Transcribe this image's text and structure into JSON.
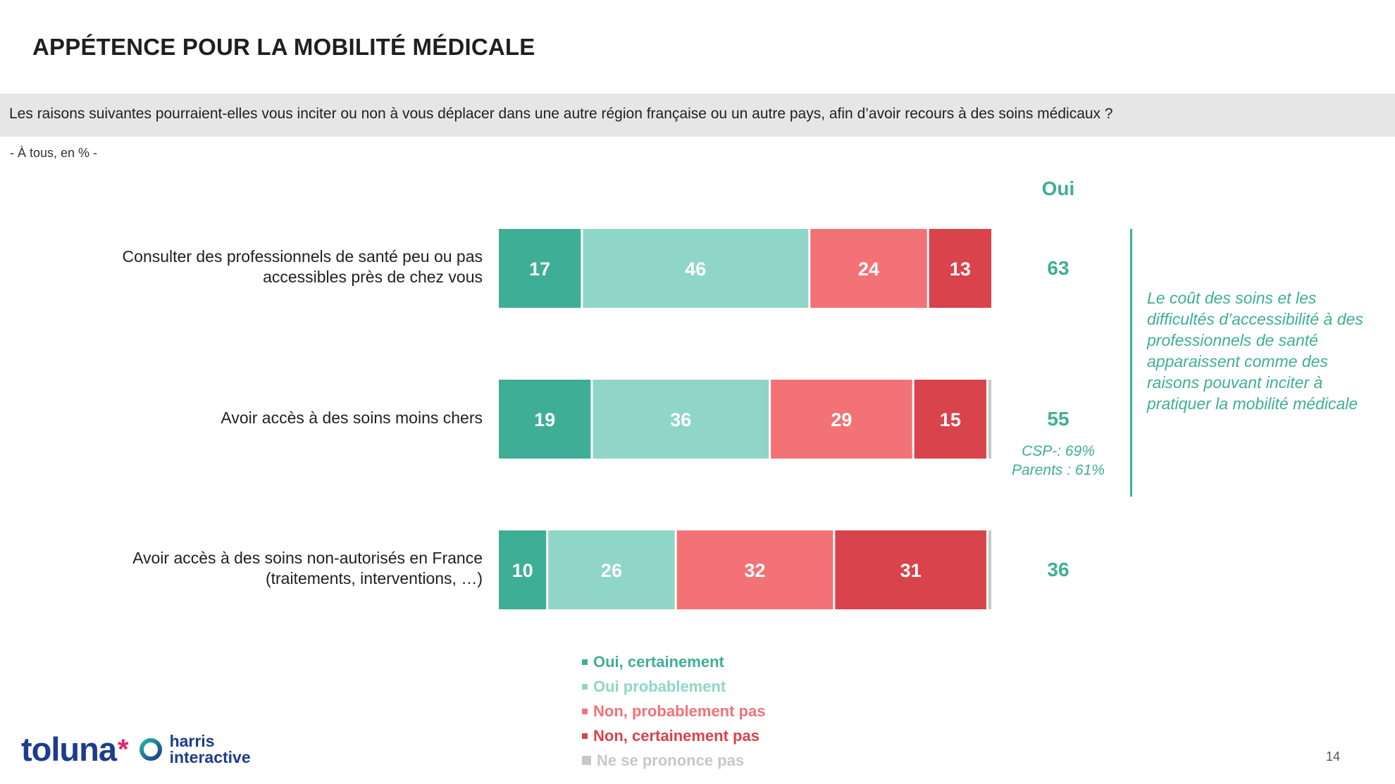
{
  "title": "APPÉTENCE POUR LA MOBILITÉ MÉDICALE",
  "question": "Les raisons suivantes pourraient-elles vous inciter ou non à vous déplacer dans une autre région française ou un autre pays, afin d’avoir recours à des soins médicaux  ?",
  "base_note": "- À tous, en % -",
  "yes_header": "Oui",
  "callout": "Le coût des soins et les difficultés d’accessibilité à des professionnels de santé apparaissent comme des raisons pouvant inciter à pratiquer la mobilité médicale",
  "page_number": "14",
  "logo": {
    "toluna": "toluna",
    "star": "*",
    "harris_line1": "harris",
    "harris_line2": "interactive"
  },
  "colors": {
    "oui_certainement": "#3fae96",
    "oui_probablement": "#8fd6c8",
    "non_probablement_pas": "#f27276",
    "non_certainement_pas": "#d9434c",
    "ne_se_prononce_pas": "#c7c7c7",
    "accent": "#3fae96"
  },
  "chart_data": {
    "type": "bar",
    "orientation": "horizontal",
    "stacked": true,
    "unit": "%",
    "categories": [
      "Consulter des professionnels de santé peu ou pas accessibles près de chez vous",
      "Avoir accès à des soins moins chers",
      "Avoir accès à des soins non-autorisés en France (traitements, interventions, …)"
    ],
    "category_lines": [
      [
        "Consulter des professionnels de santé peu ou pas",
        "accessibles près de chez vous"
      ],
      [
        "Avoir accès à des soins moins chers"
      ],
      [
        "Avoir accès à des soins non-autorisés en France",
        "(traitements, interventions, …)"
      ]
    ],
    "series": [
      {
        "name": "Oui, certainement",
        "values": [
          17,
          19,
          10
        ]
      },
      {
        "name": "Oui probablement",
        "values": [
          46,
          36,
          26
        ]
      },
      {
        "name": "Non, probablement pas",
        "values": [
          24,
          29,
          32
        ]
      },
      {
        "name": "Non, certainement pas",
        "values": [
          13,
          15,
          31
        ]
      },
      {
        "name": "Ne se prononce pas",
        "values": [
          0,
          1,
          1
        ]
      }
    ],
    "totals_oui": [
      63,
      55,
      36
    ],
    "sub_notes": [
      [],
      [
        "CSP-: 69%",
        "Parents : 61%"
      ],
      []
    ],
    "legend_position": "bottom",
    "xlim": [
      0,
      100
    ],
    "grid": false
  }
}
